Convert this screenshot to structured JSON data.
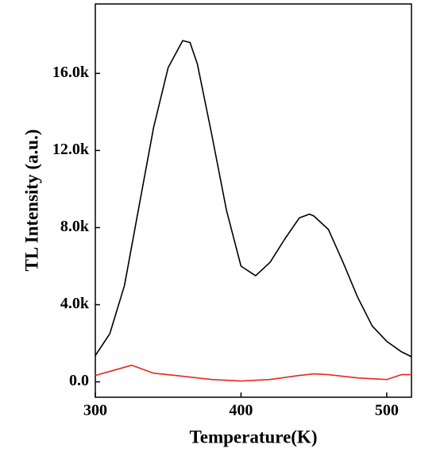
{
  "chart_data": {
    "type": "line",
    "x_label": "Temperature(K)",
    "y_label": "TL Intensity (a.u.)",
    "xlim": [
      300,
      517
    ],
    "xticks": [
      300,
      400,
      500
    ],
    "ylim": [
      -800,
      19600
    ],
    "yticks": [
      {
        "value": 0,
        "label": "0.0"
      },
      {
        "value": 4000,
        "label": "4.0k"
      },
      {
        "value": 8000,
        "label": "8.0k"
      },
      {
        "value": 12000,
        "label": "12.0k"
      },
      {
        "value": 16000,
        "label": "16.0k"
      }
    ],
    "grid": false,
    "series": [
      {
        "name": "black",
        "color": "#000000",
        "x": [
          300,
          310,
          320,
          330,
          340,
          350,
          360,
          365,
          370,
          380,
          390,
          400,
          410,
          420,
          430,
          440,
          447,
          450,
          460,
          470,
          480,
          490,
          500,
          510,
          517
        ],
        "values": [
          1360,
          2500,
          5000,
          9100,
          13200,
          16300,
          17700,
          17600,
          16500,
          12800,
          8900,
          6000,
          5500,
          6200,
          7400,
          8500,
          8700,
          8600,
          7900,
          6200,
          4400,
          2900,
          2100,
          1560,
          1300
        ]
      },
      {
        "name": "red",
        "color": "#e8281e",
        "x": [
          300,
          325,
          340,
          360,
          380,
          400,
          420,
          440,
          450,
          460,
          480,
          500,
          510,
          517
        ],
        "values": [
          330,
          860,
          450,
          290,
          120,
          40,
          120,
          330,
          410,
          370,
          200,
          120,
          370,
          370
        ]
      }
    ]
  }
}
